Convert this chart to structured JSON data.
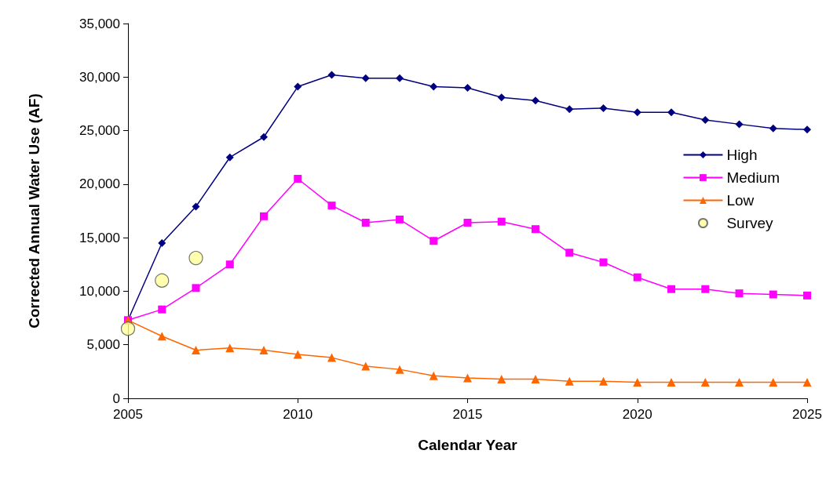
{
  "chart_data": {
    "type": "line",
    "xlabel": "Calendar Year",
    "ylabel": "Corrected Annual Water Use (AF)",
    "x": [
      2005,
      2006,
      2007,
      2008,
      2009,
      2010,
      2011,
      2012,
      2013,
      2014,
      2015,
      2016,
      2017,
      2018,
      2019,
      2020,
      2021,
      2022,
      2023,
      2024,
      2025
    ],
    "series": [
      {
        "name": "High",
        "color": "#000080",
        "marker": "diamond",
        "values": [
          7300,
          14500,
          17900,
          22500,
          24400,
          29100,
          30200,
          29900,
          29900,
          29100,
          29000,
          28100,
          27800,
          27000,
          27100,
          26700,
          26700,
          26000,
          25600,
          25200,
          25100
        ]
      },
      {
        "name": "Medium",
        "color": "#ff00ff",
        "marker": "square",
        "values": [
          7300,
          8300,
          10300,
          12500,
          17000,
          20500,
          18000,
          16400,
          16700,
          14700,
          16400,
          16500,
          15800,
          13600,
          12700,
          11300,
          10200,
          10200,
          9800,
          9700,
          9600
        ]
      },
      {
        "name": "Low",
        "color": "#ff6600",
        "marker": "triangle",
        "values": [
          7300,
          5800,
          4500,
          4700,
          4500,
          4100,
          3800,
          3000,
          2700,
          2100,
          1900,
          1800,
          1800,
          1600,
          1600,
          1500,
          1500,
          1500,
          1500,
          1500,
          1500
        ]
      },
      {
        "name": "Survey",
        "type": "scatter",
        "color": "#ffff99",
        "marker": "circle",
        "x": [
          2005,
          2006,
          2007
        ],
        "values": [
          6500,
          11000,
          13100
        ]
      }
    ],
    "xlim": [
      2005,
      2025
    ],
    "xticks": [
      2005,
      2010,
      2015,
      2020,
      2025
    ],
    "ylim": [
      0,
      35000
    ],
    "yticks": [
      0,
      {
        "value": 5000,
        "label": "5,000"
      },
      {
        "value": 10000,
        "label": "10,000"
      },
      {
        "value": 15000,
        "label": "15,000"
      },
      {
        "value": 20000,
        "label": "20,000"
      },
      {
        "value": 25000,
        "label": "25,000"
      },
      {
        "value": 30000,
        "label": "30,000"
      },
      {
        "value": 35000,
        "label": "35,000"
      }
    ],
    "grid": false,
    "legend": "right"
  }
}
